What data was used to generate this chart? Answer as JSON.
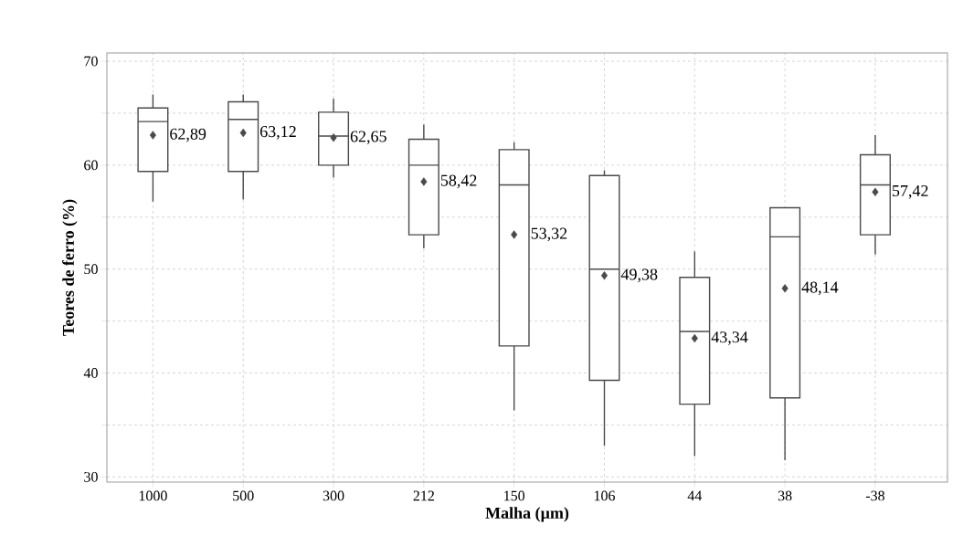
{
  "chart_data": {
    "type": "box",
    "xlabel": "Malha (µm)",
    "ylabel": "Teores de ferro (%)",
    "categories": [
      "1000",
      "500",
      "300",
      "212",
      "150",
      "106",
      "44",
      "38",
      "-38"
    ],
    "boxes": [
      {
        "low": 56.5,
        "q1": 59.4,
        "median": 64.2,
        "q3": 65.5,
        "high": 66.8,
        "mean": 62.89
      },
      {
        "low": 56.7,
        "q1": 59.4,
        "median": 64.4,
        "q3": 66.1,
        "high": 66.8,
        "mean": 63.12
      },
      {
        "low": 58.8,
        "q1": 60.0,
        "median": 62.8,
        "q3": 65.1,
        "high": 66.4,
        "mean": 62.65
      },
      {
        "low": 52.0,
        "q1": 53.3,
        "median": 60.0,
        "q3": 62.5,
        "high": 63.9,
        "mean": 58.42
      },
      {
        "low": 36.4,
        "q1": 42.6,
        "median": 58.1,
        "q3": 61.5,
        "high": 62.2,
        "mean": 53.32
      },
      {
        "low": 33.0,
        "q1": 39.3,
        "median": 50.0,
        "q3": 59.0,
        "high": 59.5,
        "mean": 49.38
      },
      {
        "low": 32.0,
        "q1": 37.0,
        "median": 44.0,
        "q3": 49.2,
        "high": 51.7,
        "mean": 43.34
      },
      {
        "low": 31.6,
        "q1": 37.6,
        "median": 53.1,
        "q3": 55.9,
        "high": 55.9,
        "mean": 48.14
      },
      {
        "low": 51.4,
        "q1": 53.3,
        "median": 58.1,
        "q3": 61.0,
        "high": 62.9,
        "mean": 57.42
      }
    ],
    "color": "#4a4a4a",
    "marker": "diamond",
    "annotations": [
      "62,89",
      "63,12",
      "62,65",
      "58,42",
      "53,32",
      "49,38",
      "43,34",
      "48,14",
      "57,42"
    ],
    "ylim": [
      29.5,
      70.8
    ],
    "yticks": [
      30,
      {
        "value": 35,
        "label": null
      },
      40,
      {
        "value": 45,
        "label": null
      },
      50,
      {
        "value": 55,
        "label": null
      },
      60,
      {
        "value": 65,
        "label": null
      },
      70
    ],
    "grid": true
  }
}
